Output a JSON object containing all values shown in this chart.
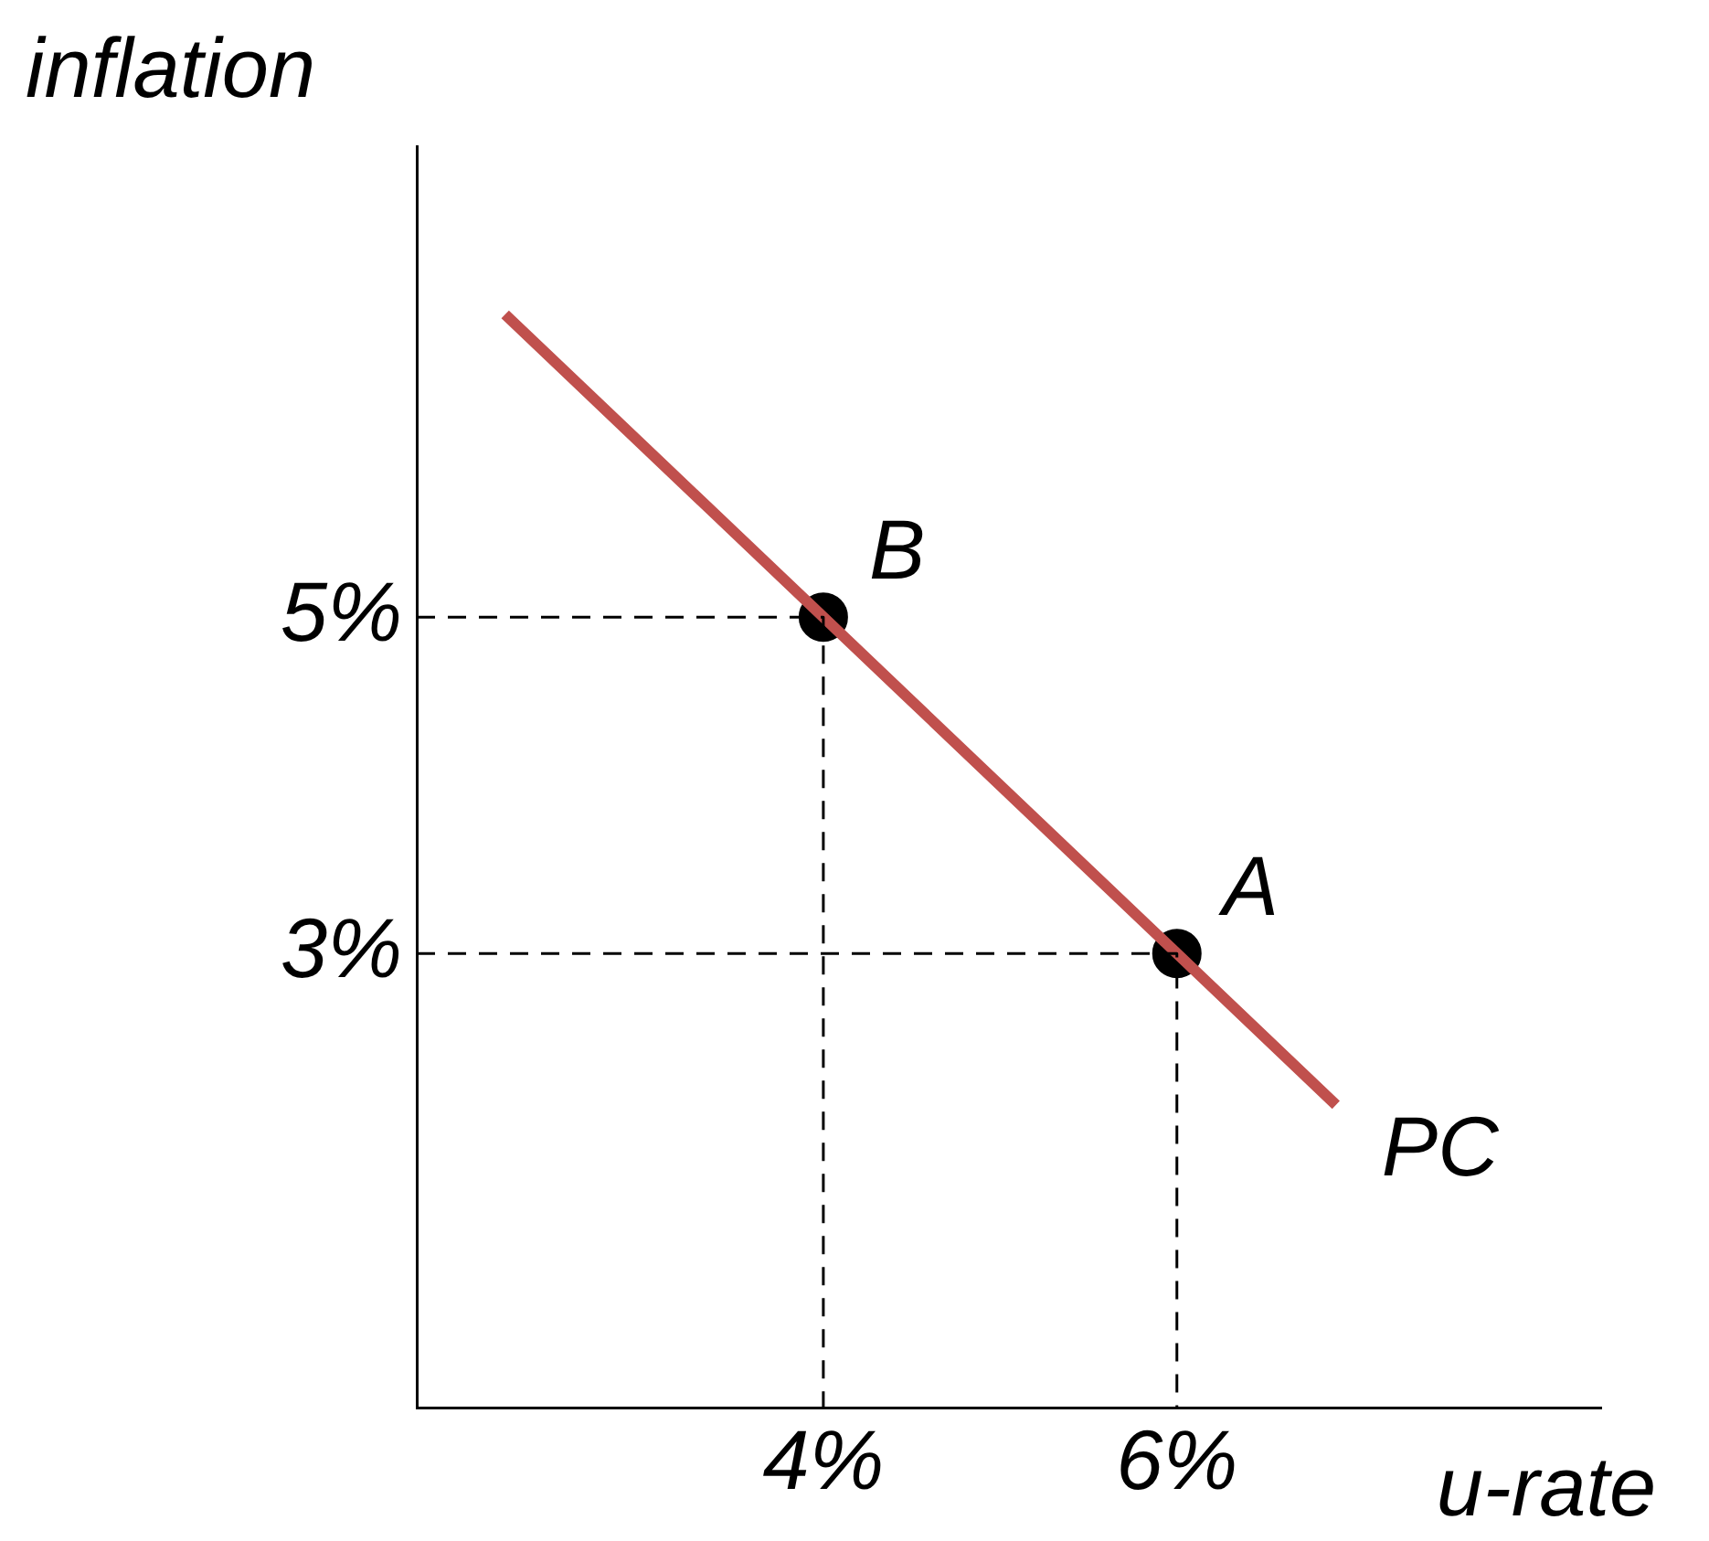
{
  "chart_data": {
    "type": "line",
    "xlabel": "u-rate",
    "ylabel": "inflation",
    "xlim": [
      1.7,
      8.4
    ],
    "ylim": [
      0.3,
      7.8
    ],
    "xticks": [
      {
        "value": 4,
        "label": "4%"
      },
      {
        "value": 6,
        "label": "6%"
      }
    ],
    "yticks": [
      {
        "value": 3,
        "label": "3%"
      },
      {
        "value": 5,
        "label": "5%"
      }
    ],
    "grid": false,
    "legend": false,
    "series": [
      {
        "color": "#000000",
        "line_style": "dashed",
        "marker": "none",
        "x": [
          1.7,
          4,
          4
        ],
        "values": [
          5,
          5,
          0.3
        ]
      },
      {
        "color": "#000000",
        "line_style": "dashed",
        "marker": "none",
        "x": [
          1.7,
          6,
          6
        ],
        "values": [
          3,
          3,
          0.3
        ]
      },
      {
        "color": "#c0504d",
        "line_style": "solid",
        "marker": "none",
        "x": [
          2.2,
          4,
          6,
          6.9
        ],
        "values": [
          6.8,
          5,
          3,
          2.1
        ]
      },
      {
        "type": "scatter",
        "color": "#000000",
        "marker": "circle",
        "x": [
          4,
          6
        ],
        "values": [
          5,
          3
        ]
      }
    ],
    "annotations": [
      {
        "text": "B",
        "x": 4,
        "y": 5
      },
      {
        "text": "A",
        "x": 6,
        "y": 3
      },
      {
        "text": "PC",
        "x": 6.9,
        "y": 2.1
      }
    ]
  }
}
